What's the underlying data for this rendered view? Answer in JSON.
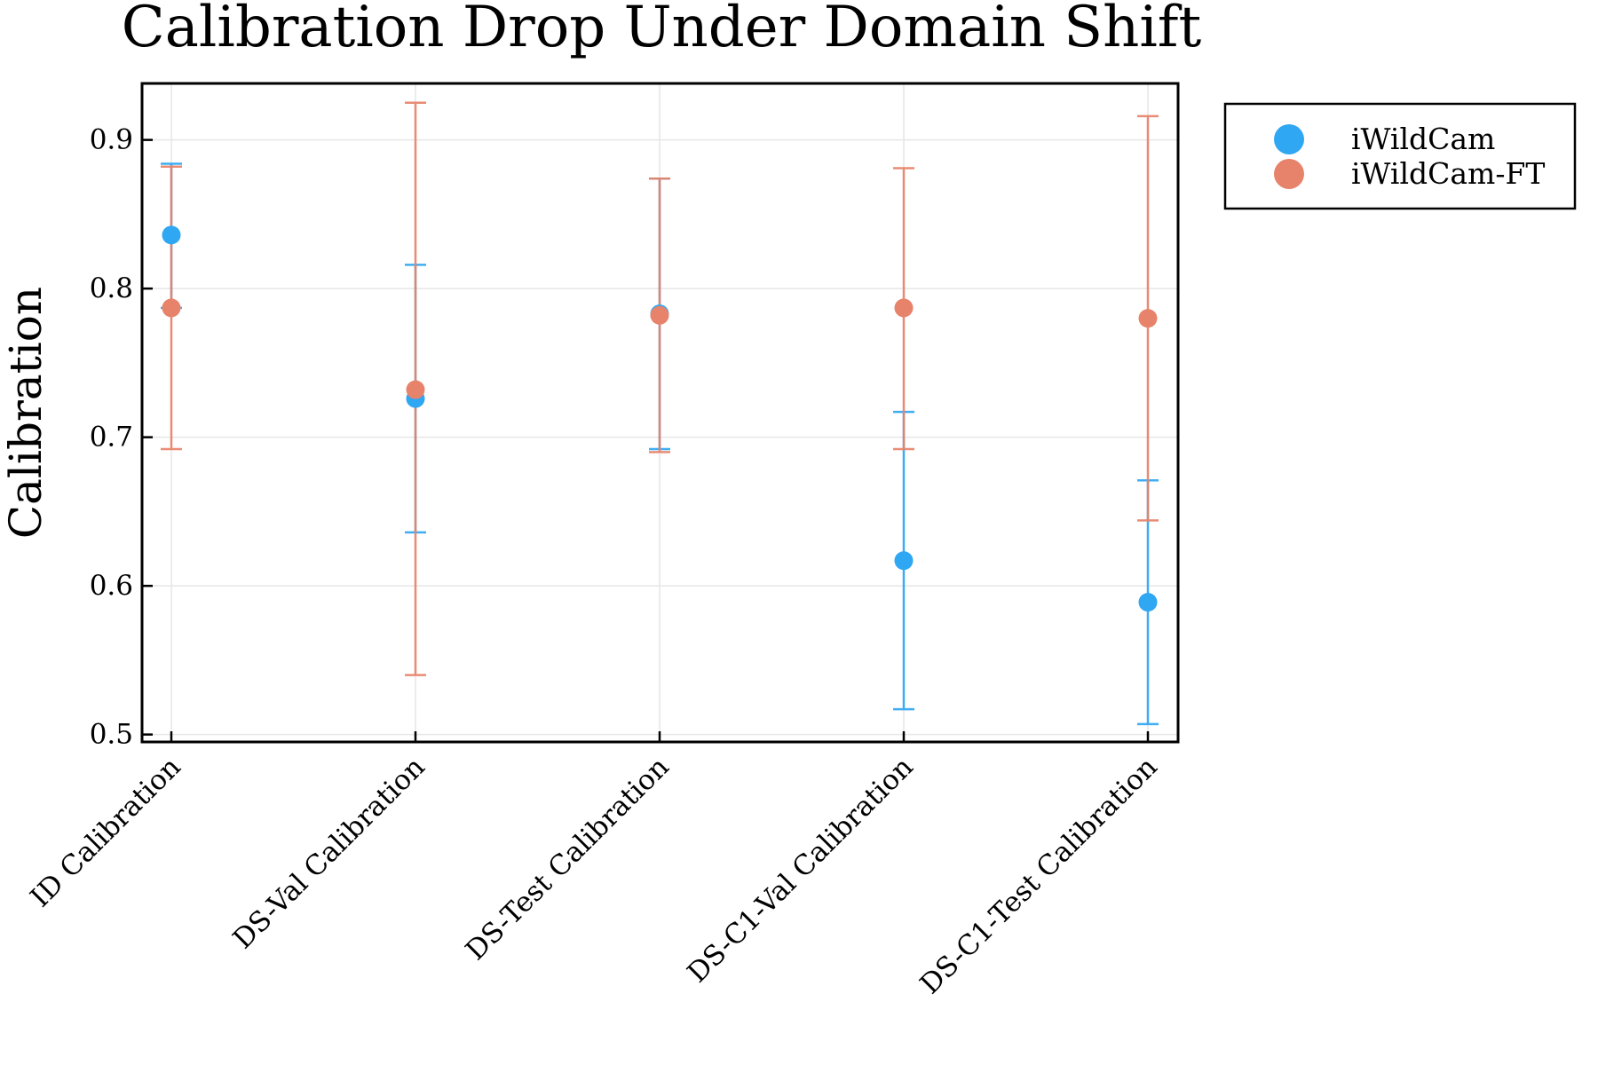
{
  "chart_data": {
    "type": "scatter",
    "title": "Calibration Drop Under Domain Shift",
    "xlabel": "",
    "ylabel": "Calibration",
    "categories": [
      "ID Calibration",
      "DS-Val Calibration",
      "DS-Test Calibration",
      "DS-C1-Val Calibration",
      "DS-C1-Test Calibration"
    ],
    "ylim": [
      0.495,
      0.938
    ],
    "yticks": [
      0.5,
      0.6,
      0.7,
      0.8,
      0.9
    ],
    "ytick_labels": [
      "0.5",
      "0.6",
      "0.7",
      "0.8",
      "0.9"
    ],
    "grid": true,
    "legend_position": "outside-top-right",
    "series": [
      {
        "name": "iWildCam",
        "color": "#2fa7f2",
        "values": [
          0.836,
          0.726,
          0.783,
          0.617,
          0.589
        ],
        "err_low": [
          0.787,
          0.636,
          0.692,
          0.517,
          0.507
        ],
        "err_high": [
          0.884,
          0.816,
          0.874,
          0.717,
          0.671
        ]
      },
      {
        "name": "iWildCam-FT",
        "color": "#e8836b",
        "values": [
          0.787,
          0.732,
          0.782,
          0.787,
          0.78
        ],
        "err_low": [
          0.692,
          0.54,
          0.69,
          0.692,
          0.644
        ],
        "err_high": [
          0.882,
          0.925,
          0.874,
          0.881,
          0.916
        ]
      }
    ]
  }
}
